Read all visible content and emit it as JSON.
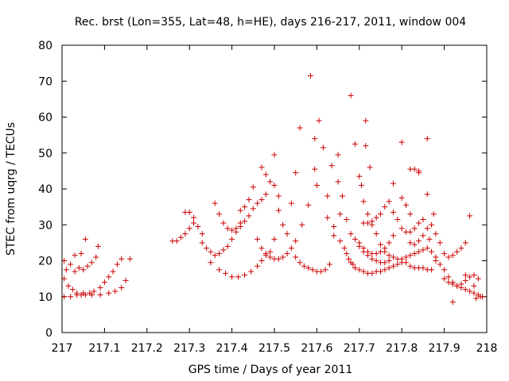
{
  "chart_data": {
    "type": "scatter",
    "title": "Rec. brst (Lon=355, Lat=48, h=HE), days 216-217, 2011, window 004",
    "xlabel": "GPS time / Days of year 2011",
    "ylabel": "STEC from uqrg / TECUs",
    "xlim": [
      217,
      218
    ],
    "ylim": [
      0,
      80
    ],
    "x_ticks": [
      "217",
      "217.1",
      "217.2",
      "217.3",
      "217.4",
      "217.5",
      "217.6",
      "217.7",
      "217.8",
      "217.9",
      "218"
    ],
    "y_ticks": [
      "0",
      "10",
      "20",
      "30",
      "40",
      "50",
      "60",
      "70",
      "80"
    ],
    "grid": false,
    "legend": "none",
    "marker": "+",
    "color": "#cc0000",
    "series": [
      {
        "points": [
          [
            217.005,
            20
          ],
          [
            217.01,
            17.5
          ],
          [
            217.02,
            19
          ],
          [
            217.03,
            17
          ],
          [
            217.04,
            18
          ],
          [
            217.05,
            17.5
          ],
          [
            217.06,
            18.5
          ],
          [
            217.07,
            19.5
          ],
          [
            217.08,
            21
          ],
          [
            217.085,
            24
          ],
          [
            217.005,
            15
          ],
          [
            217.015,
            13
          ],
          [
            217.025,
            12
          ],
          [
            217.035,
            11
          ],
          [
            217.045,
            10.5
          ],
          [
            217.055,
            10.5
          ],
          [
            217.065,
            11
          ],
          [
            217.075,
            11.5
          ],
          [
            217.09,
            12.5
          ],
          [
            217.1,
            14
          ],
          [
            217.11,
            15.5
          ],
          [
            217.12,
            17
          ],
          [
            217.13,
            19
          ],
          [
            217.14,
            20.5
          ],
          [
            217.16,
            20.5
          ],
          [
            217.005,
            10
          ],
          [
            217.02,
            10
          ],
          [
            217.035,
            10.5
          ],
          [
            217.05,
            11
          ],
          [
            217.07,
            10.5
          ],
          [
            217.09,
            10.5
          ],
          [
            217.11,
            11
          ],
          [
            217.125,
            11.5
          ],
          [
            217.14,
            12.5
          ],
          [
            217.15,
            14.5
          ],
          [
            217.03,
            21.5
          ],
          [
            217.045,
            22
          ],
          [
            217.055,
            26
          ],
          [
            217.26,
            25.5
          ],
          [
            217.27,
            25.5
          ],
          [
            217.28,
            26.5
          ],
          [
            217.29,
            27.5
          ],
          [
            217.3,
            29
          ],
          [
            217.31,
            30.5
          ],
          [
            217.32,
            29.5
          ],
          [
            217.33,
            27.5
          ],
          [
            217.29,
            33.5
          ],
          [
            217.3,
            33.5
          ],
          [
            217.31,
            32
          ],
          [
            217.33,
            25
          ],
          [
            217.34,
            23.5
          ],
          [
            217.35,
            22.5
          ],
          [
            217.36,
            21.5
          ],
          [
            217.37,
            22
          ],
          [
            217.38,
            23
          ],
          [
            217.39,
            24
          ],
          [
            217.4,
            26
          ],
          [
            217.41,
            28
          ],
          [
            217.42,
            29.5
          ],
          [
            217.43,
            31
          ],
          [
            217.44,
            32.5
          ],
          [
            217.45,
            34.5
          ],
          [
            217.46,
            36
          ],
          [
            217.47,
            37
          ],
          [
            217.48,
            38.5
          ],
          [
            217.36,
            36
          ],
          [
            217.37,
            33
          ],
          [
            217.38,
            30.5
          ],
          [
            217.39,
            29
          ],
          [
            217.4,
            28.5
          ],
          [
            217.41,
            29
          ],
          [
            217.42,
            30.5
          ],
          [
            217.35,
            19.5
          ],
          [
            217.37,
            17.5
          ],
          [
            217.385,
            16.5
          ],
          [
            217.4,
            15.5
          ],
          [
            217.415,
            15.5
          ],
          [
            217.43,
            16
          ],
          [
            217.445,
            17
          ],
          [
            217.46,
            18.5
          ],
          [
            217.47,
            20
          ],
          [
            217.48,
            21.5
          ],
          [
            217.42,
            34
          ],
          [
            217.43,
            35
          ],
          [
            217.44,
            37
          ],
          [
            217.45,
            40.5
          ],
          [
            217.47,
            46
          ],
          [
            217.48,
            44
          ],
          [
            217.49,
            42
          ],
          [
            217.5,
            41
          ],
          [
            217.51,
            38
          ],
          [
            217.46,
            26
          ],
          [
            217.47,
            23.5
          ],
          [
            217.48,
            22
          ],
          [
            217.49,
            22.5
          ],
          [
            217.5,
            26
          ],
          [
            217.49,
            21
          ],
          [
            217.5,
            20.5
          ],
          [
            217.51,
            20.5
          ],
          [
            217.52,
            21
          ],
          [
            217.53,
            22
          ],
          [
            217.54,
            23.5
          ],
          [
            217.55,
            25.5
          ],
          [
            217.5,
            49.5
          ],
          [
            217.51,
            34
          ],
          [
            217.52,
            30
          ],
          [
            217.53,
            27.5
          ],
          [
            217.54,
            36
          ],
          [
            217.55,
            44.5
          ],
          [
            217.56,
            57
          ],
          [
            217.55,
            21
          ],
          [
            217.56,
            19.5
          ],
          [
            217.57,
            18.5
          ],
          [
            217.58,
            18
          ],
          [
            217.59,
            17.5
          ],
          [
            217.6,
            17
          ],
          [
            217.61,
            17
          ],
          [
            217.62,
            17.5
          ],
          [
            217.63,
            19
          ],
          [
            217.565,
            30
          ],
          [
            217.58,
            35.5
          ],
          [
            217.585,
            71.5
          ],
          [
            217.595,
            54
          ],
          [
            217.595,
            45.5
          ],
          [
            217.6,
            41
          ],
          [
            217.605,
            59
          ],
          [
            217.615,
            51.5
          ],
          [
            217.625,
            38
          ],
          [
            217.625,
            32
          ],
          [
            217.635,
            46.5
          ],
          [
            217.64,
            29.5
          ],
          [
            217.64,
            27
          ],
          [
            217.65,
            49.5
          ],
          [
            217.65,
            42
          ],
          [
            217.655,
            33
          ],
          [
            217.655,
            25.5
          ],
          [
            217.66,
            38
          ],
          [
            217.665,
            23.5
          ],
          [
            217.67,
            22
          ],
          [
            217.675,
            20.5
          ],
          [
            217.68,
            19.5
          ],
          [
            217.685,
            19
          ],
          [
            217.69,
            18
          ],
          [
            217.7,
            17.5
          ],
          [
            217.71,
            17
          ],
          [
            217.72,
            16.5
          ],
          [
            217.73,
            16.5
          ],
          [
            217.74,
            17
          ],
          [
            217.75,
            17
          ],
          [
            217.76,
            17.5
          ],
          [
            217.77,
            18
          ],
          [
            217.78,
            18.5
          ],
          [
            217.79,
            19
          ],
          [
            217.8,
            19.5
          ],
          [
            217.81,
            19.5
          ],
          [
            217.68,
            66
          ],
          [
            217.69,
            52.5
          ],
          [
            217.7,
            43.5
          ],
          [
            217.705,
            41
          ],
          [
            217.71,
            36.5
          ],
          [
            217.715,
            59
          ],
          [
            217.715,
            52
          ],
          [
            217.72,
            33
          ],
          [
            217.725,
            46
          ],
          [
            217.73,
            30
          ],
          [
            217.74,
            27.5
          ],
          [
            217.75,
            24.5
          ],
          [
            217.76,
            22.5
          ],
          [
            217.67,
            31.5
          ],
          [
            217.68,
            27.5
          ],
          [
            217.69,
            26
          ],
          [
            217.7,
            24
          ],
          [
            217.71,
            22.5
          ],
          [
            217.72,
            21.5
          ],
          [
            217.73,
            20.5
          ],
          [
            217.74,
            20
          ],
          [
            217.75,
            19.5
          ],
          [
            217.76,
            19.5
          ],
          [
            217.77,
            20
          ],
          [
            217.71,
            30.5
          ],
          [
            217.72,
            30.5
          ],
          [
            217.73,
            31
          ],
          [
            217.74,
            32
          ],
          [
            217.75,
            33
          ],
          [
            217.76,
            35
          ],
          [
            217.77,
            36.5
          ],
          [
            217.7,
            25
          ],
          [
            217.71,
            23.5
          ],
          [
            217.72,
            22.5
          ],
          [
            217.73,
            22
          ],
          [
            217.74,
            22
          ],
          [
            217.75,
            22.5
          ],
          [
            217.76,
            23.5
          ],
          [
            217.77,
            25
          ],
          [
            217.78,
            27
          ],
          [
            217.78,
            33.5
          ],
          [
            217.79,
            31.5
          ],
          [
            217.8,
            29
          ],
          [
            217.81,
            28
          ],
          [
            217.82,
            28
          ],
          [
            217.83,
            29
          ],
          [
            217.84,
            30.5
          ],
          [
            217.85,
            31.5
          ],
          [
            217.78,
            41.5
          ],
          [
            217.8,
            53
          ],
          [
            217.8,
            37.5
          ],
          [
            217.81,
            35.5
          ],
          [
            217.82,
            45.5
          ],
          [
            217.82,
            33
          ],
          [
            217.83,
            45.5
          ],
          [
            217.84,
            45
          ],
          [
            217.84,
            44.5
          ],
          [
            217.77,
            21.5
          ],
          [
            217.78,
            21
          ],
          [
            217.79,
            20.5
          ],
          [
            217.8,
            20.5
          ],
          [
            217.81,
            21
          ],
          [
            217.82,
            21.5
          ],
          [
            217.83,
            22
          ],
          [
            217.84,
            22.5
          ],
          [
            217.85,
            23
          ],
          [
            217.86,
            23.5
          ],
          [
            217.87,
            22.5
          ],
          [
            217.88,
            21
          ],
          [
            217.82,
            25
          ],
          [
            217.83,
            24.5
          ],
          [
            217.84,
            25.5
          ],
          [
            217.85,
            27
          ],
          [
            217.86,
            29
          ],
          [
            217.87,
            30
          ],
          [
            217.82,
            18.5
          ],
          [
            217.83,
            18
          ],
          [
            217.84,
            18
          ],
          [
            217.85,
            18
          ],
          [
            217.86,
            17.5
          ],
          [
            217.87,
            17.5
          ],
          [
            217.86,
            54
          ],
          [
            217.86,
            38.5
          ],
          [
            217.865,
            26
          ],
          [
            217.875,
            33
          ],
          [
            217.88,
            20
          ],
          [
            217.89,
            19
          ],
          [
            217.9,
            17.5
          ],
          [
            217.91,
            15.5
          ],
          [
            217.92,
            14
          ],
          [
            217.93,
            13
          ],
          [
            217.94,
            12.5
          ],
          [
            217.95,
            12
          ],
          [
            217.96,
            11.5
          ],
          [
            217.97,
            11
          ],
          [
            217.98,
            10.5
          ],
          [
            217.99,
            10
          ],
          [
            217.88,
            27.5
          ],
          [
            217.89,
            25
          ],
          [
            217.9,
            22
          ],
          [
            217.91,
            21
          ],
          [
            217.92,
            21.5
          ],
          [
            217.93,
            22.5
          ],
          [
            217.94,
            23.5
          ],
          [
            217.95,
            25
          ],
          [
            217.9,
            15
          ],
          [
            217.91,
            14
          ],
          [
            217.92,
            13.5
          ],
          [
            217.93,
            13
          ],
          [
            217.94,
            13.5
          ],
          [
            217.95,
            14.5
          ],
          [
            217.96,
            15.5
          ],
          [
            217.97,
            16
          ],
          [
            217.92,
            8.5
          ],
          [
            217.95,
            16
          ],
          [
            217.96,
            32.5
          ],
          [
            217.97,
            13
          ],
          [
            217.98,
            15
          ],
          [
            217.975,
            9.5
          ],
          [
            217.985,
            10
          ]
        ]
      }
    ]
  }
}
